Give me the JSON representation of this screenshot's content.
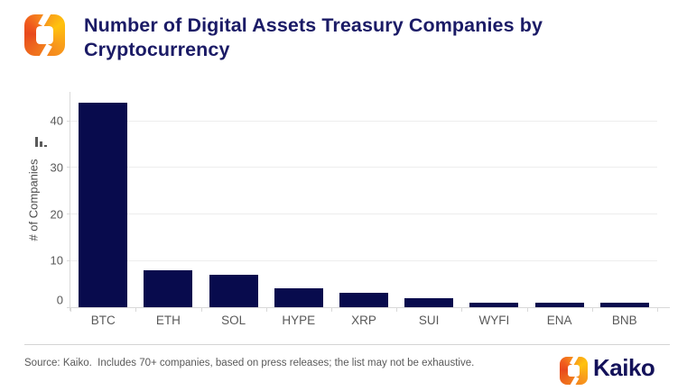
{
  "header": {
    "title_line1": "Number of Digital Assets Treasury Companies by",
    "title_line2": "Cryptocurrency"
  },
  "chart_data": {
    "type": "bar",
    "title": "Number of Digital Assets Treasury Companies by Cryptocurrency",
    "categories": [
      "BTC",
      "ETH",
      "SOL",
      "HYPE",
      "XRP",
      "SUI",
      "WYFI",
      "ENA",
      "BNB"
    ],
    "values": [
      44,
      8,
      7,
      4,
      3,
      2,
      1,
      1,
      1
    ],
    "xlabel": "",
    "ylabel": "# of Companies",
    "ylim": [
      0,
      46
    ],
    "yticks": [
      0,
      10,
      20,
      30,
      40
    ],
    "grid": true,
    "legend": false
  },
  "footer": {
    "source_note": "Source: Kaiko.  Includes 70+ companies, based on press releases; the list may not be exhaustive.",
    "brand_wordmark": "Kaiko"
  },
  "colors": {
    "bar": "#080b4d",
    "title_text": "#1b1b66",
    "axis_text": "#595959",
    "gridline": "#ededed",
    "axis_line": "#d9d9d9",
    "brand_navy": "#14125a",
    "logo_yellow": "#ffc20e",
    "logo_orange": "#f7941d",
    "logo_red_orange": "#e8491d"
  },
  "icons": {
    "header_logo": "kaiko-logo-icon",
    "footer_logo": "kaiko-logo-icon",
    "y_axis_icon": "mini-bar-chart-icon"
  }
}
